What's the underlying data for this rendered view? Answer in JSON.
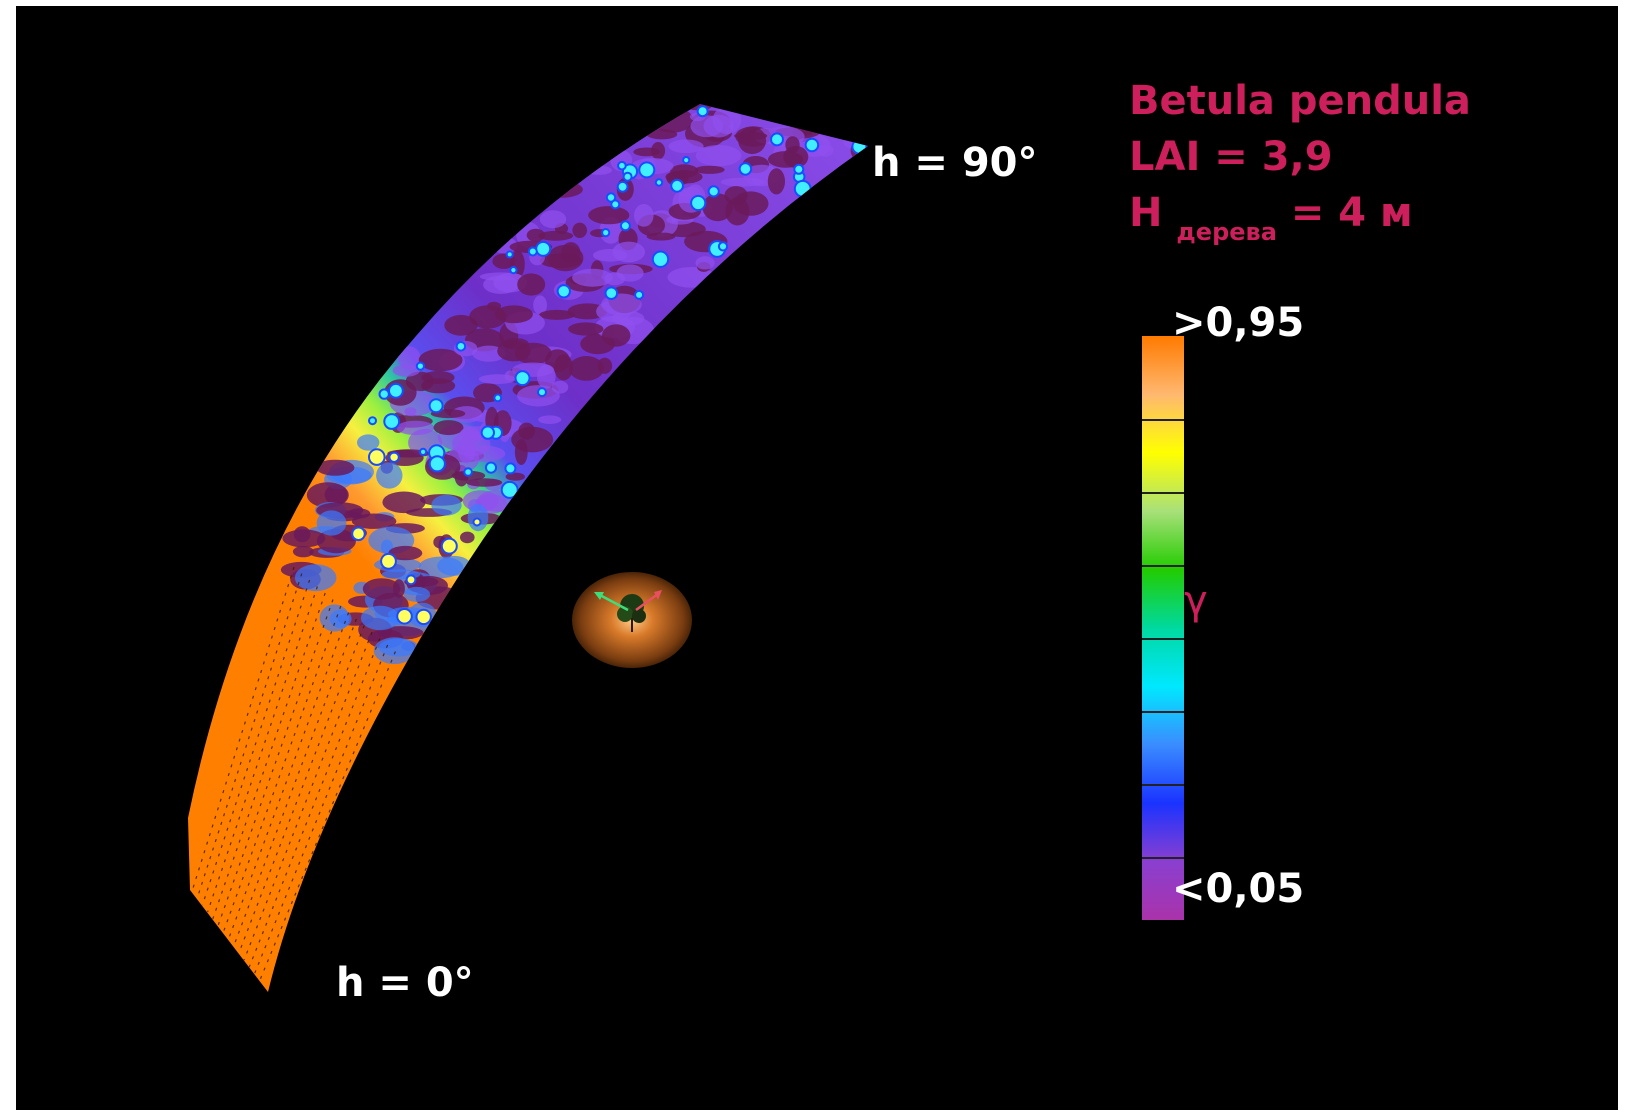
{
  "species": "Betula pendula",
  "lai": "LAI = 3,9",
  "height_label_main": "H",
  "height_label_sub": "дерева",
  "height_label_value": "= 4 м",
  "label_top": "h = 90°",
  "label_bottom": "h = 0°",
  "colorbar": {
    "max_label": ">0,95",
    "min_label": "<0,05",
    "symbol": "γ",
    "stops": [
      "#ff7a00",
      "#ffb870",
      "#ffff00",
      "#a8e07a",
      "#22cc00",
      "#00d9a0",
      "#00e8ff",
      "#3a8cff",
      "#1a33ff",
      "#8a3fd0",
      "#aa33aa"
    ]
  },
  "colors": {
    "accent": "#cc1f5c",
    "background": "#000000",
    "low": "#7a2bd8",
    "high": "#ff8000"
  }
}
